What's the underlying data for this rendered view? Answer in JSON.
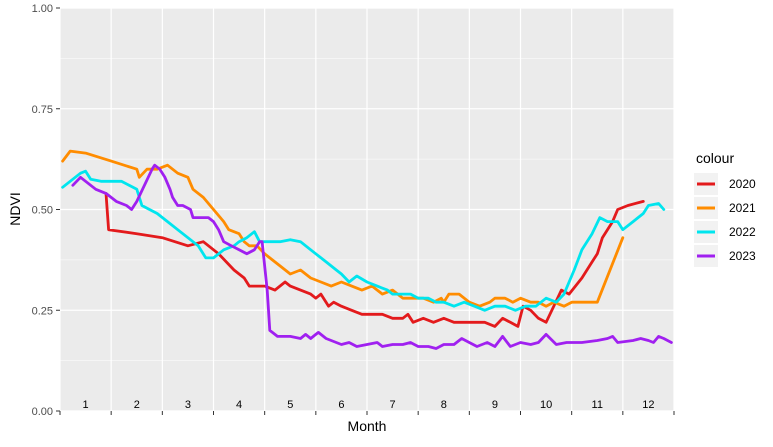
{
  "chart_data": {
    "type": "line",
    "xlabel": "Month",
    "ylabel": "NDVI",
    "xlim": [
      0.5,
      12.5
    ],
    "ylim": [
      0,
      1
    ],
    "x_ticks": [
      1,
      2,
      3,
      4,
      5,
      6,
      7,
      8,
      9,
      10,
      11,
      12
    ],
    "x_tick_labels": [
      "1",
      "2",
      "3",
      "4",
      "5",
      "6",
      "7",
      "8",
      "9",
      "10",
      "11",
      "12"
    ],
    "y_ticks": [
      0,
      0.25,
      0.5,
      0.75,
      1
    ],
    "y_tick_labels": [
      "0.00",
      "0.25",
      "0.50",
      "0.75",
      "1.00"
    ],
    "grid": true,
    "legend": {
      "title": "colour",
      "position": "right"
    },
    "series": [
      {
        "name": "2020",
        "color": "#e31a1c",
        "points": [
          [
            1.4,
            0.54
          ],
          [
            1.45,
            0.45
          ],
          [
            2.0,
            0.44
          ],
          [
            2.5,
            0.43
          ],
          [
            3.0,
            0.41
          ],
          [
            3.3,
            0.42
          ],
          [
            3.6,
            0.39
          ],
          [
            3.9,
            0.35
          ],
          [
            4.1,
            0.33
          ],
          [
            4.2,
            0.31
          ],
          [
            4.5,
            0.31
          ],
          [
            4.7,
            0.3
          ],
          [
            4.9,
            0.32
          ],
          [
            5.0,
            0.31
          ],
          [
            5.2,
            0.3
          ],
          [
            5.4,
            0.29
          ],
          [
            5.5,
            0.28
          ],
          [
            5.6,
            0.29
          ],
          [
            5.75,
            0.26
          ],
          [
            5.85,
            0.27
          ],
          [
            6.0,
            0.26
          ],
          [
            6.2,
            0.25
          ],
          [
            6.4,
            0.24
          ],
          [
            6.6,
            0.24
          ],
          [
            6.8,
            0.24
          ],
          [
            7.0,
            0.23
          ],
          [
            7.2,
            0.23
          ],
          [
            7.3,
            0.24
          ],
          [
            7.4,
            0.22
          ],
          [
            7.6,
            0.23
          ],
          [
            7.8,
            0.22
          ],
          [
            8.0,
            0.23
          ],
          [
            8.2,
            0.22
          ],
          [
            8.4,
            0.22
          ],
          [
            8.6,
            0.22
          ],
          [
            8.8,
            0.22
          ],
          [
            9.0,
            0.21
          ],
          [
            9.15,
            0.23
          ],
          [
            9.3,
            0.22
          ],
          [
            9.45,
            0.21
          ],
          [
            9.55,
            0.26
          ],
          [
            9.7,
            0.25
          ],
          [
            9.85,
            0.23
          ],
          [
            10.0,
            0.22
          ],
          [
            10.15,
            0.26
          ],
          [
            10.3,
            0.3
          ],
          [
            10.45,
            0.29
          ],
          [
            10.7,
            0.33
          ],
          [
            10.9,
            0.37
          ],
          [
            11.0,
            0.39
          ],
          [
            11.1,
            0.43
          ],
          [
            11.3,
            0.47
          ],
          [
            11.4,
            0.5
          ],
          [
            11.6,
            0.51
          ],
          [
            11.9,
            0.52
          ]
        ]
      },
      {
        "name": "2021",
        "color": "#ff8c00",
        "points": [
          [
            0.55,
            0.62
          ],
          [
            0.7,
            0.645
          ],
          [
            1.0,
            0.64
          ],
          [
            1.5,
            0.62
          ],
          [
            2.0,
            0.6
          ],
          [
            2.05,
            0.58
          ],
          [
            2.2,
            0.6
          ],
          [
            2.4,
            0.6
          ],
          [
            2.6,
            0.61
          ],
          [
            2.8,
            0.59
          ],
          [
            3.0,
            0.58
          ],
          [
            3.1,
            0.55
          ],
          [
            3.3,
            0.53
          ],
          [
            3.5,
            0.5
          ],
          [
            3.7,
            0.47
          ],
          [
            3.8,
            0.45
          ],
          [
            4.0,
            0.44
          ],
          [
            4.1,
            0.42
          ],
          [
            4.2,
            0.41
          ],
          [
            4.35,
            0.41
          ],
          [
            4.5,
            0.39
          ],
          [
            4.6,
            0.38
          ],
          [
            4.8,
            0.36
          ],
          [
            5.0,
            0.34
          ],
          [
            5.2,
            0.35
          ],
          [
            5.4,
            0.33
          ],
          [
            5.6,
            0.32
          ],
          [
            5.8,
            0.31
          ],
          [
            6.0,
            0.32
          ],
          [
            6.2,
            0.31
          ],
          [
            6.4,
            0.3
          ],
          [
            6.6,
            0.31
          ],
          [
            6.8,
            0.29
          ],
          [
            7.0,
            0.3
          ],
          [
            7.2,
            0.28
          ],
          [
            7.4,
            0.28
          ],
          [
            7.6,
            0.28
          ],
          [
            7.8,
            0.27
          ],
          [
            7.95,
            0.28
          ],
          [
            8.0,
            0.27
          ],
          [
            8.1,
            0.29
          ],
          [
            8.3,
            0.29
          ],
          [
            8.5,
            0.27
          ],
          [
            8.7,
            0.26
          ],
          [
            8.9,
            0.27
          ],
          [
            9.0,
            0.28
          ],
          [
            9.2,
            0.28
          ],
          [
            9.35,
            0.27
          ],
          [
            9.5,
            0.28
          ],
          [
            9.7,
            0.27
          ],
          [
            9.85,
            0.27
          ],
          [
            10.0,
            0.26
          ],
          [
            10.15,
            0.27
          ],
          [
            10.35,
            0.26
          ],
          [
            10.5,
            0.27
          ],
          [
            10.7,
            0.27
          ],
          [
            11.0,
            0.27
          ],
          [
            11.5,
            0.43
          ]
        ]
      },
      {
        "name": "2022",
        "color": "#00e5ee",
        "points": [
          [
            0.55,
            0.555
          ],
          [
            0.7,
            0.57
          ],
          [
            0.9,
            0.59
          ],
          [
            1.0,
            0.595
          ],
          [
            1.1,
            0.575
          ],
          [
            1.3,
            0.57
          ],
          [
            1.6,
            0.57
          ],
          [
            1.7,
            0.57
          ],
          [
            1.85,
            0.56
          ],
          [
            2.0,
            0.55
          ],
          [
            2.1,
            0.51
          ],
          [
            2.25,
            0.5
          ],
          [
            2.4,
            0.49
          ],
          [
            2.6,
            0.47
          ],
          [
            2.8,
            0.45
          ],
          [
            3.0,
            0.43
          ],
          [
            3.2,
            0.41
          ],
          [
            3.35,
            0.38
          ],
          [
            3.5,
            0.38
          ],
          [
            3.7,
            0.4
          ],
          [
            3.9,
            0.41
          ],
          [
            4.0,
            0.42
          ],
          [
            4.15,
            0.43
          ],
          [
            4.3,
            0.445
          ],
          [
            4.4,
            0.42
          ],
          [
            4.6,
            0.42
          ],
          [
            4.8,
            0.42
          ],
          [
            5.0,
            0.425
          ],
          [
            5.2,
            0.42
          ],
          [
            5.4,
            0.4
          ],
          [
            5.5,
            0.39
          ],
          [
            5.7,
            0.37
          ],
          [
            5.9,
            0.35
          ],
          [
            6.0,
            0.34
          ],
          [
            6.15,
            0.32
          ],
          [
            6.3,
            0.335
          ],
          [
            6.5,
            0.32
          ],
          [
            6.7,
            0.31
          ],
          [
            6.9,
            0.3
          ],
          [
            7.0,
            0.29
          ],
          [
            7.2,
            0.29
          ],
          [
            7.35,
            0.29
          ],
          [
            7.5,
            0.28
          ],
          [
            7.7,
            0.28
          ],
          [
            7.85,
            0.27
          ],
          [
            8.0,
            0.27
          ],
          [
            8.2,
            0.26
          ],
          [
            8.4,
            0.27
          ],
          [
            8.6,
            0.26
          ],
          [
            8.8,
            0.25
          ],
          [
            9.0,
            0.26
          ],
          [
            9.2,
            0.26
          ],
          [
            9.4,
            0.25
          ],
          [
            9.6,
            0.26
          ],
          [
            9.8,
            0.26
          ],
          [
            10.0,
            0.28
          ],
          [
            10.2,
            0.27
          ],
          [
            10.35,
            0.29
          ],
          [
            10.55,
            0.35
          ],
          [
            10.7,
            0.4
          ],
          [
            10.9,
            0.44
          ],
          [
            11.05,
            0.48
          ],
          [
            11.2,
            0.47
          ],
          [
            11.4,
            0.47
          ],
          [
            11.5,
            0.45
          ],
          [
            11.7,
            0.47
          ],
          [
            11.9,
            0.49
          ],
          [
            12.0,
            0.51
          ],
          [
            12.2,
            0.515
          ],
          [
            12.3,
            0.5
          ]
        ]
      },
      {
        "name": "2023",
        "color": "#a020f0",
        "points": [
          [
            0.75,
            0.56
          ],
          [
            0.9,
            0.58
          ],
          [
            1.0,
            0.57
          ],
          [
            1.2,
            0.55
          ],
          [
            1.4,
            0.54
          ],
          [
            1.6,
            0.52
          ],
          [
            1.8,
            0.51
          ],
          [
            1.9,
            0.5
          ],
          [
            2.0,
            0.52
          ],
          [
            2.3,
            0.6
          ],
          [
            2.35,
            0.61
          ],
          [
            2.45,
            0.6
          ],
          [
            2.55,
            0.58
          ],
          [
            2.65,
            0.55
          ],
          [
            2.7,
            0.53
          ],
          [
            2.8,
            0.51
          ],
          [
            2.9,
            0.51
          ],
          [
            3.05,
            0.5
          ],
          [
            3.1,
            0.48
          ],
          [
            3.2,
            0.48
          ],
          [
            3.4,
            0.48
          ],
          [
            3.5,
            0.47
          ],
          [
            3.6,
            0.45
          ],
          [
            3.7,
            0.42
          ],
          [
            3.85,
            0.41
          ],
          [
            4.0,
            0.4
          ],
          [
            4.15,
            0.39
          ],
          [
            4.3,
            0.4
          ],
          [
            4.4,
            0.42
          ],
          [
            4.45,
            0.42
          ],
          [
            4.55,
            0.3
          ],
          [
            4.6,
            0.2
          ],
          [
            4.75,
            0.185
          ],
          [
            5.0,
            0.185
          ],
          [
            5.2,
            0.18
          ],
          [
            5.3,
            0.19
          ],
          [
            5.4,
            0.18
          ],
          [
            5.5,
            0.19
          ],
          [
            5.55,
            0.195
          ],
          [
            5.6,
            0.19
          ],
          [
            5.7,
            0.18
          ],
          [
            5.9,
            0.17
          ],
          [
            6.0,
            0.165
          ],
          [
            6.15,
            0.17
          ],
          [
            6.3,
            0.16
          ],
          [
            6.5,
            0.165
          ],
          [
            6.7,
            0.17
          ],
          [
            6.8,
            0.16
          ],
          [
            7.0,
            0.165
          ],
          [
            7.2,
            0.165
          ],
          [
            7.35,
            0.17
          ],
          [
            7.5,
            0.16
          ],
          [
            7.7,
            0.16
          ],
          [
            7.85,
            0.155
          ],
          [
            8.0,
            0.165
          ],
          [
            8.2,
            0.165
          ],
          [
            8.35,
            0.18
          ],
          [
            8.5,
            0.17
          ],
          [
            8.65,
            0.16
          ],
          [
            8.85,
            0.17
          ],
          [
            9.0,
            0.16
          ],
          [
            9.15,
            0.185
          ],
          [
            9.3,
            0.16
          ],
          [
            9.5,
            0.17
          ],
          [
            9.7,
            0.165
          ],
          [
            9.85,
            0.17
          ],
          [
            10.0,
            0.19
          ],
          [
            10.2,
            0.165
          ],
          [
            10.4,
            0.17
          ],
          [
            10.7,
            0.17
          ],
          [
            11.0,
            0.175
          ],
          [
            11.2,
            0.18
          ],
          [
            11.3,
            0.185
          ],
          [
            11.4,
            0.17
          ],
          [
            11.7,
            0.175
          ],
          [
            11.85,
            0.18
          ],
          [
            12.0,
            0.175
          ],
          [
            12.1,
            0.17
          ],
          [
            12.2,
            0.185
          ],
          [
            12.3,
            0.18
          ],
          [
            12.45,
            0.17
          ]
        ]
      }
    ]
  }
}
